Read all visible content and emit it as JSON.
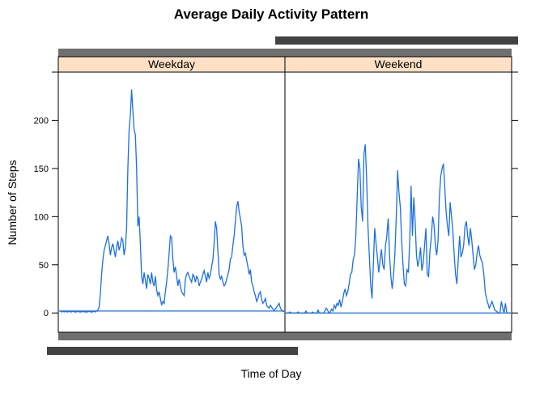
{
  "chart_data": {
    "type": "line",
    "title": "Average Daily Activity Pattern",
    "xlabel": "Time of Day",
    "ylabel": "Number of Steps",
    "ylim": [
      -20,
      250
    ],
    "yticks": [
      0,
      50,
      100,
      150,
      200
    ],
    "panels": [
      {
        "name": "Weekday",
        "series": [
          {
            "values": [
              2,
              2,
              1,
              2,
              1,
              2,
              1,
              1,
              2,
              1,
              1,
              2,
              1,
              1,
              1,
              2,
              1,
              1,
              1,
              2,
              1,
              1,
              1,
              1,
              2,
              1,
              1,
              1,
              2,
              1,
              2,
              3,
              6,
              20,
              40,
              55,
              65,
              70,
              75,
              80,
              72,
              60,
              68,
              72,
              65,
              58,
              68,
              75,
              65,
              70,
              78,
              75,
              60,
              68,
              88,
              150,
              190,
              205,
              232,
              210,
              190,
              185,
              150,
              90,
              100,
              72,
              38,
              30,
              42,
              34,
              25,
              40,
              36,
              30,
              42,
              32,
              28,
              38,
              24,
              18,
              22,
              15,
              8,
              12,
              10,
              22,
              32,
              45,
              62,
              80,
              78,
              56,
              42,
              48,
              38,
              28,
              35,
              28,
              22,
              20,
              18,
              35,
              40,
              42,
              38,
              35,
              32,
              40,
              38,
              32,
              38,
              36,
              28,
              32,
              35,
              40,
              44,
              38,
              32,
              42,
              36,
              40,
              48,
              55,
              72,
              95,
              88,
              65,
              40,
              35,
              38,
              32,
              28,
              30,
              35,
              40,
              45,
              56,
              58,
              70,
              80,
              95,
              110,
              116,
              105,
              98,
              90,
              70,
              60,
              62,
              55,
              48,
              40,
              45,
              32,
              28,
              22,
              18,
              12,
              15,
              20,
              22,
              14,
              10,
              12,
              15,
              8,
              6,
              5,
              8,
              6,
              4,
              3,
              4,
              6,
              8,
              10,
              5,
              3,
              2,
              1
            ],
            "flat_line": [
              2,
              2
            ]
          }
        ]
      },
      {
        "name": "Weekend",
        "series": [
          {
            "values": [
              0,
              0,
              0,
              1,
              0,
              0,
              0,
              0,
              0,
              1,
              0,
              0,
              0,
              0,
              0,
              2,
              0,
              0,
              0,
              0,
              1,
              0,
              0,
              0,
              3,
              0,
              0,
              0,
              0,
              2,
              5,
              3,
              0,
              1,
              4,
              2,
              8,
              5,
              10,
              8,
              14,
              6,
              12,
              20,
              25,
              18,
              22,
              30,
              40,
              42,
              55,
              60,
              80,
              120,
              160,
              150,
              110,
              95,
              165,
              175,
              140,
              90,
              60,
              30,
              15,
              50,
              88,
              72,
              58,
              42,
              55,
              66,
              50,
              45,
              70,
              80,
              98,
              60,
              38,
              25,
              40,
              62,
              100,
              148,
              125,
              110,
              75,
              50,
              30,
              28,
              45,
              42,
              75,
              132,
              80,
              120,
              95,
              60,
              48,
              55,
              68,
              44,
              52,
              70,
              88,
              40,
              38,
              65,
              78,
              100,
              92,
              70,
              60,
              75,
              120,
              142,
              150,
              155,
              130,
              105,
              90,
              80,
              115,
              100,
              85,
              60,
              40,
              30,
              55,
              80,
              58,
              62,
              70,
              90,
              95,
              80,
              70,
              88,
              76,
              60,
              45,
              50,
              62,
              70,
              60,
              55,
              52,
              40,
              22,
              15,
              10,
              5,
              8,
              12,
              8,
              3,
              2,
              1,
              0,
              0,
              12,
              5,
              0,
              10,
              0,
              0,
              0,
              0
            ],
            "flat_line": [
              0,
              0
            ]
          }
        ]
      }
    ],
    "colors": {
      "line": "#1a6fe8",
      "strip": "#ffe0c4",
      "strip_top": "#7a7a7a"
    }
  }
}
